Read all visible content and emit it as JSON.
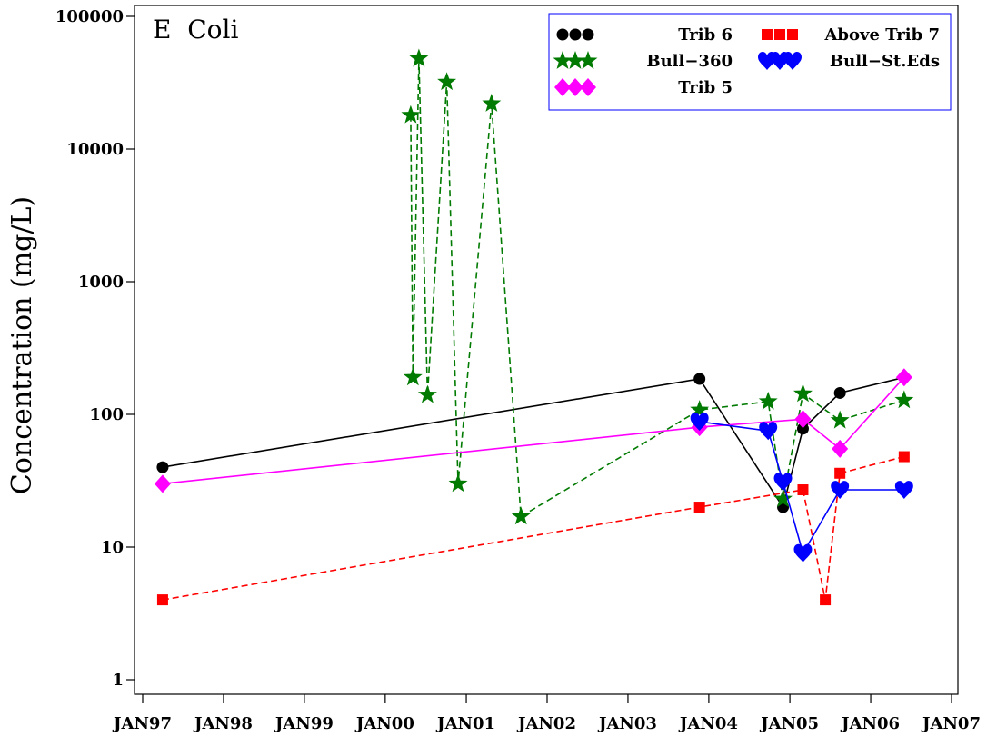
{
  "chart_data": {
    "type": "line",
    "title": "E  Coli",
    "ylabel": "Concentration (mg/L)",
    "xlabel": "",
    "y_scale": "log",
    "ylim": [
      1,
      100000
    ],
    "xlim": [
      "1997-01-01",
      "2007-01-01"
    ],
    "y_ticks": [
      {
        "value": 1,
        "label": "1"
      },
      {
        "value": 10,
        "label": "10"
      },
      {
        "value": 100,
        "label": "100"
      },
      {
        "value": 1000,
        "label": "1000"
      },
      {
        "value": 10000,
        "label": "10000"
      },
      {
        "value": 100000,
        "label": "100000"
      }
    ],
    "x_ticks": [
      {
        "date": "1997-01-01",
        "label": "JAN97"
      },
      {
        "date": "1998-01-01",
        "label": "JAN98"
      },
      {
        "date": "1999-01-01",
        "label": "JAN99"
      },
      {
        "date": "2000-01-01",
        "label": "JAN00"
      },
      {
        "date": "2001-01-01",
        "label": "JAN01"
      },
      {
        "date": "2002-01-01",
        "label": "JAN02"
      },
      {
        "date": "2003-01-01",
        "label": "JAN03"
      },
      {
        "date": "2004-01-01",
        "label": "JAN04"
      },
      {
        "date": "2005-01-01",
        "label": "JAN05"
      },
      {
        "date": "2006-01-01",
        "label": "JAN06"
      },
      {
        "date": "2007-01-01",
        "label": "JAN07"
      }
    ],
    "grid": false,
    "legend_position": "top-right",
    "series": [
      {
        "name": "Trib 6",
        "color": "#000000",
        "marker": "circle",
        "dash": "solid",
        "points": [
          {
            "x": "1997-04-01",
            "y": 40
          },
          {
            "x": "2003-11-20",
            "y": 185
          },
          {
            "x": "2004-12-01",
            "y": 20
          },
          {
            "x": "2005-03-01",
            "y": 78
          },
          {
            "x": "2005-08-15",
            "y": 145
          },
          {
            "x": "2006-06-01",
            "y": 190
          }
        ]
      },
      {
        "name": "Bull-360",
        "color": "#007a00",
        "marker": "star",
        "dash": "dashed",
        "points": [
          {
            "x": "2000-04-25",
            "y": 18000
          },
          {
            "x": "2000-05-05",
            "y": 190
          },
          {
            "x": "2000-06-01",
            "y": 48000
          },
          {
            "x": "2000-07-10",
            "y": 140
          },
          {
            "x": "2000-10-05",
            "y": 32000
          },
          {
            "x": "2000-11-25",
            "y": 30
          },
          {
            "x": "2001-04-25",
            "y": 22000
          },
          {
            "x": "2001-09-05",
            "y": 17
          },
          {
            "x": "2003-11-20",
            "y": 108
          },
          {
            "x": "2004-09-25",
            "y": 125
          },
          {
            "x": "2004-12-01",
            "y": 23
          },
          {
            "x": "2005-03-01",
            "y": 143
          },
          {
            "x": "2005-08-15",
            "y": 90
          },
          {
            "x": "2006-06-01",
            "y": 128
          }
        ]
      },
      {
        "name": "Trib 5",
        "color": "#ff00ff",
        "marker": "diamond",
        "dash": "solid",
        "points": [
          {
            "x": "1997-04-01",
            "y": 30
          },
          {
            "x": "2003-11-20",
            "y": 80
          },
          {
            "x": "2005-03-01",
            "y": 92
          },
          {
            "x": "2005-08-15",
            "y": 55
          },
          {
            "x": "2006-06-01",
            "y": 190
          }
        ]
      },
      {
        "name": "Above Trib 7",
        "color": "#ff0000",
        "marker": "square",
        "dash": "dashed",
        "points": [
          {
            "x": "1997-04-01",
            "y": 4
          },
          {
            "x": "2003-11-20",
            "y": 20
          },
          {
            "x": "2005-03-01",
            "y": 27
          },
          {
            "x": "2005-06-10",
            "y": 4
          },
          {
            "x": "2005-08-15",
            "y": 36
          },
          {
            "x": "2006-06-01",
            "y": 48
          }
        ]
      },
      {
        "name": "Bull-St.Eds",
        "color": "#0000ff",
        "marker": "heart",
        "dash": "solid",
        "points": [
          {
            "x": "2003-11-20",
            "y": 88
          },
          {
            "x": "2004-09-25",
            "y": 75
          },
          {
            "x": "2004-12-01",
            "y": 31
          },
          {
            "x": "2005-03-01",
            "y": 9
          },
          {
            "x": "2005-08-15",
            "y": 27
          },
          {
            "x": "2006-06-01",
            "y": 27
          }
        ]
      }
    ]
  },
  "legend": {
    "items": [
      {
        "label": "Trib 6",
        "series": 0
      },
      {
        "label": "Above Trib 7",
        "series": 3
      },
      {
        "label": "Bull−360",
        "series": 1
      },
      {
        "label": "Bull−St.Eds",
        "series": 4
      },
      {
        "label": "Trib 5",
        "series": 2
      }
    ]
  }
}
